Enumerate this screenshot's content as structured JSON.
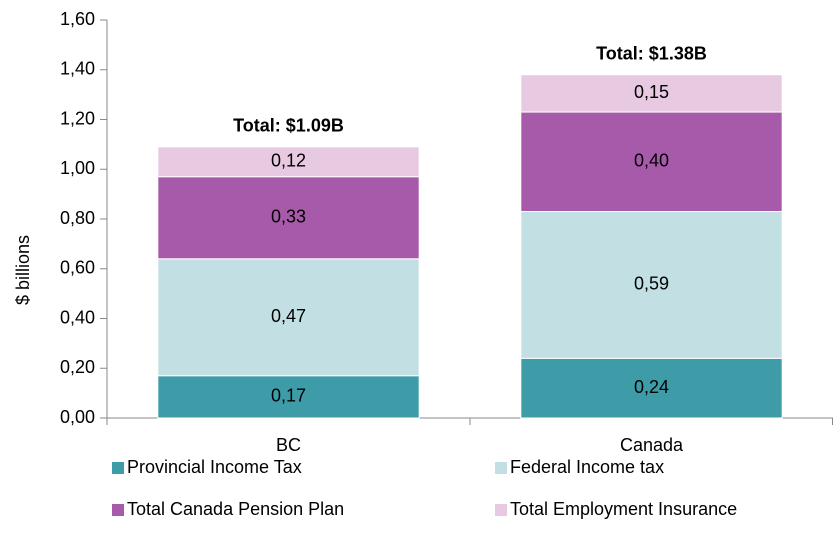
{
  "chart_data": {
    "type": "stacked_bar",
    "y_label": "$ billions",
    "categories": [
      "BC",
      "Canada"
    ],
    "series": [
      {
        "name": "Provincial Income Tax",
        "color": "#3d9ca8",
        "values": [
          0.17,
          0.24
        ],
        "value_labels": [
          "0,17",
          "0,24"
        ]
      },
      {
        "name": "Federal Income tax",
        "color": "#c2e0e4",
        "values": [
          0.47,
          0.59
        ],
        "value_labels": [
          "0,47",
          "0,59"
        ]
      },
      {
        "name": "Total Canada Pension Plan",
        "color": "#a85aaa",
        "values": [
          0.33,
          0.4
        ],
        "value_labels": [
          "0,33",
          "0,40"
        ]
      },
      {
        "name": "Total Employment Insurance",
        "color": "#e8c9e2",
        "values": [
          0.12,
          0.15
        ],
        "value_labels": [
          "0,12",
          "0,15"
        ]
      }
    ],
    "annotations": [
      "Total: $1.09B",
      "Total: $1.38B"
    ],
    "ylim": [
      0,
      1.6
    ],
    "yticks": [
      {
        "value": 0,
        "label": "0,00"
      },
      {
        "value": 0.2,
        "label": "0,20"
      },
      {
        "value": 0.4,
        "label": "0,40"
      },
      {
        "value": 0.6,
        "label": "0,60"
      },
      {
        "value": 0.8,
        "label": "0,80"
      },
      {
        "value": 1.0,
        "label": "1,00"
      },
      {
        "value": 1.2,
        "label": "1,20"
      },
      {
        "value": 1.4,
        "label": "1,40"
      },
      {
        "value": 1.6,
        "label": "1,60"
      }
    ],
    "legend": "bottom"
  }
}
